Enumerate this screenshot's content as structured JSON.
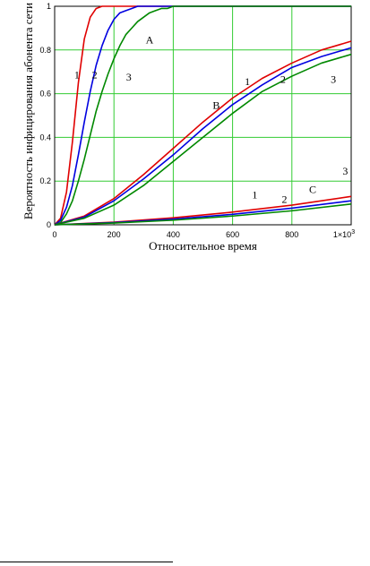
{
  "chart_data": {
    "type": "line",
    "xlabel": "Относительное время",
    "ylabel": "Вероятность инфицирования абонента сети",
    "xlim": [
      0,
      1000
    ],
    "ylim": [
      0,
      1
    ],
    "x_ticks": [
      "0",
      "200",
      "400",
      "600",
      "800"
    ],
    "x_tick_last": "1×10",
    "x_tick_last_exp": "3",
    "y_ticks": [
      "0",
      "0.2",
      "0.4",
      "0.6",
      "0.8",
      "1"
    ],
    "grid": true,
    "grid_color": "#33cc33",
    "colors": {
      "1": "#e00000",
      "2": "#0000e0",
      "3": "#008800"
    },
    "groups": [
      {
        "label": "A",
        "series": [
          {
            "name": "1",
            "x": [
              0,
              20,
              40,
              60,
              80,
              100,
              120,
              140,
              160,
              180,
              200,
              1000
            ],
            "y": [
              0,
              0.03,
              0.15,
              0.38,
              0.65,
              0.85,
              0.95,
              0.99,
              1,
              1,
              1,
              1
            ]
          },
          {
            "name": "2",
            "x": [
              0,
              20,
              40,
              60,
              80,
              100,
              120,
              140,
              160,
              180,
              200,
              220,
              240,
              260,
              280,
              300,
              320,
              340,
              1000
            ],
            "y": [
              0,
              0.02,
              0.08,
              0.18,
              0.32,
              0.47,
              0.61,
              0.73,
              0.82,
              0.89,
              0.94,
              0.97,
              0.98,
              0.99,
              1,
              1,
              1,
              1,
              1
            ]
          },
          {
            "name": "3",
            "x": [
              0,
              20,
              40,
              60,
              80,
              100,
              120,
              140,
              160,
              180,
              200,
              220,
              240,
              260,
              280,
              300,
              320,
              340,
              360,
              380,
              400,
              420,
              440,
              460,
              480,
              500,
              520,
              540,
              1000
            ],
            "y": [
              0,
              0.01,
              0.05,
              0.11,
              0.2,
              0.3,
              0.41,
              0.52,
              0.61,
              0.69,
              0.76,
              0.82,
              0.87,
              0.9,
              0.93,
              0.95,
              0.97,
              0.98,
              0.99,
              0.99,
              1,
              1,
              1,
              1,
              1,
              1,
              1,
              1,
              1
            ]
          }
        ]
      },
      {
        "label": "B",
        "series": [
          {
            "name": "1",
            "x": [
              0,
              100,
              200,
              300,
              400,
              500,
              600,
              700,
              800,
              900,
              1000
            ],
            "y": [
              0,
              0.04,
              0.12,
              0.23,
              0.35,
              0.47,
              0.58,
              0.67,
              0.74,
              0.8,
              0.84
            ]
          },
          {
            "name": "2",
            "x": [
              0,
              100,
              200,
              300,
              400,
              500,
              600,
              700,
              800,
              900,
              1000
            ],
            "y": [
              0,
              0.035,
              0.11,
              0.21,
              0.32,
              0.44,
              0.55,
              0.64,
              0.72,
              0.77,
              0.81
            ]
          },
          {
            "name": "3",
            "x": [
              0,
              100,
              200,
              300,
              400,
              500,
              600,
              700,
              800,
              900,
              1000
            ],
            "y": [
              0,
              0.03,
              0.09,
              0.18,
              0.29,
              0.4,
              0.51,
              0.61,
              0.68,
              0.74,
              0.78
            ]
          }
        ]
      },
      {
        "label": "C",
        "series": [
          {
            "name": "1",
            "x": [
              0,
              200,
              400,
              600,
              800,
              1000
            ],
            "y": [
              0,
              0.012,
              0.032,
              0.058,
              0.09,
              0.13
            ]
          },
          {
            "name": "2",
            "x": [
              0,
              200,
              400,
              600,
              800,
              1000
            ],
            "y": [
              0,
              0.01,
              0.026,
              0.048,
              0.076,
              0.11
            ]
          },
          {
            "name": "3",
            "x": [
              0,
              200,
              400,
              600,
              800,
              1000
            ],
            "y": [
              0,
              0.008,
              0.021,
              0.04,
              0.064,
              0.095
            ]
          }
        ]
      }
    ],
    "annotations": [
      {
        "text": "1",
        "x": 75,
        "y": 0.67
      },
      {
        "text": "2",
        "x": 135,
        "y": 0.67
      },
      {
        "text": "3",
        "x": 250,
        "y": 0.66
      },
      {
        "text": "A",
        "x": 320,
        "y": 0.83
      },
      {
        "text": "1",
        "x": 650,
        "y": 0.64
      },
      {
        "text": "2",
        "x": 770,
        "y": 0.65
      },
      {
        "text": "3",
        "x": 940,
        "y": 0.65
      },
      {
        "text": "B",
        "x": 545,
        "y": 0.53
      },
      {
        "text": "1",
        "x": 675,
        "y": 0.12
      },
      {
        "text": "2",
        "x": 775,
        "y": 0.1
      },
      {
        "text": "C",
        "x": 870,
        "y": 0.145
      },
      {
        "text": "3",
        "x": 980,
        "y": 0.23
      }
    ]
  }
}
